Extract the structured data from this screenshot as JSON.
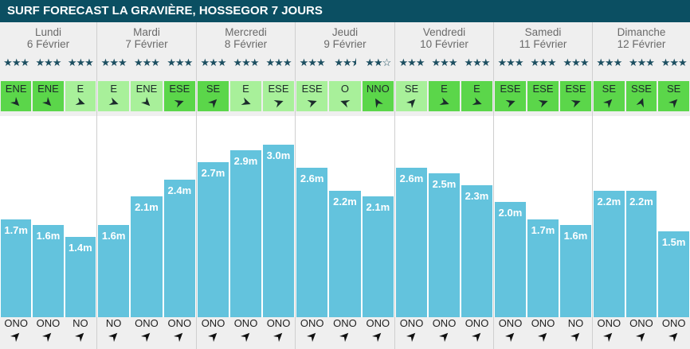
{
  "title": "SURF FORECAST LA GRAVIÈRE, HOSSEGOR 7 JOURS",
  "colors": {
    "header_bg": "#0b4f62",
    "wave_bar": "#63c3dd",
    "wind_light": "#a8f09a",
    "wind_strong": "#5bd64a",
    "star": "#1d4f61"
  },
  "chart_data": {
    "type": "bar",
    "title": "SURF FORECAST LA GRAVIÈRE, HOSSEGOR 7 JOURS",
    "ylabel": "",
    "unit": "m",
    "ylim": [
      0,
      3.5
    ],
    "days": [
      {
        "name": "Lundi",
        "date": "6 Février",
        "slots": [
          {
            "stars": 3,
            "wind": "ENE",
            "wind_strength": "strong",
            "wind_angle": 225,
            "wave": 1.7,
            "wave_label": "1.7m",
            "swell": "ONO",
            "swell_angle": 135
          },
          {
            "stars": 3,
            "wind": "ENE",
            "wind_strength": "strong",
            "wind_angle": 225,
            "wave": 1.6,
            "wave_label": "1.6m",
            "swell": "ONO",
            "swell_angle": 135
          },
          {
            "stars": 3,
            "wind": "E",
            "wind_strength": "light",
            "wind_angle": 200,
            "wave": 1.4,
            "wave_label": "1.4m",
            "swell": "NO",
            "swell_angle": 135
          }
        ]
      },
      {
        "name": "Mardi",
        "date": "7 Février",
        "slots": [
          {
            "stars": 3,
            "wind": "E",
            "wind_strength": "light",
            "wind_angle": 200,
            "wave": 1.6,
            "wave_label": "1.6m",
            "swell": "NO",
            "swell_angle": 135
          },
          {
            "stars": 3,
            "wind": "ENE",
            "wind_strength": "light",
            "wind_angle": 225,
            "wave": 2.1,
            "wave_label": "2.1m",
            "swell": "ONO",
            "swell_angle": 135
          },
          {
            "stars": 3,
            "wind": "ESE",
            "wind_strength": "strong",
            "wind_angle": 160,
            "wave": 2.4,
            "wave_label": "2.4m",
            "swell": "ONO",
            "swell_angle": 135
          }
        ]
      },
      {
        "name": "Mercredi",
        "date": "8 Février",
        "slots": [
          {
            "stars": 3,
            "wind": "SE",
            "wind_strength": "strong",
            "wind_angle": 135,
            "wave": 2.7,
            "wave_label": "2.7m",
            "swell": "ONO",
            "swell_angle": 135
          },
          {
            "stars": 3,
            "wind": "E",
            "wind_strength": "light",
            "wind_angle": 200,
            "wave": 2.9,
            "wave_label": "2.9m",
            "swell": "ONO",
            "swell_angle": 135
          },
          {
            "stars": 3,
            "wind": "ESE",
            "wind_strength": "light",
            "wind_angle": 160,
            "wave": 3.0,
            "wave_label": "3.0m",
            "swell": "ONO",
            "swell_angle": 135
          }
        ]
      },
      {
        "name": "Jeudi",
        "date": "9 Février",
        "slots": [
          {
            "stars": 3,
            "wind": "ESE",
            "wind_strength": "light",
            "wind_angle": 160,
            "wave": 2.6,
            "wave_label": "2.6m",
            "swell": "ONO",
            "swell_angle": 135
          },
          {
            "stars": 2.5,
            "wind": "O",
            "wind_strength": "light",
            "wind_angle": 20,
            "wave": 2.2,
            "wave_label": "2.2m",
            "swell": "ONO",
            "swell_angle": 135
          },
          {
            "stars": 2,
            "wind": "NNO",
            "wind_strength": "strong",
            "wind_angle": 60,
            "wave": 2.1,
            "wave_label": "2.1m",
            "swell": "ONO",
            "swell_angle": 135
          }
        ]
      },
      {
        "name": "Vendredi",
        "date": "10 Février",
        "slots": [
          {
            "stars": 3,
            "wind": "SE",
            "wind_strength": "light",
            "wind_angle": 135,
            "wave": 2.6,
            "wave_label": "2.6m",
            "swell": "ONO",
            "swell_angle": 135
          },
          {
            "stars": 3,
            "wind": "E",
            "wind_strength": "strong",
            "wind_angle": 200,
            "wave": 2.5,
            "wave_label": "2.5m",
            "swell": "ONO",
            "swell_angle": 135
          },
          {
            "stars": 3,
            "wind": "E",
            "wind_strength": "strong",
            "wind_angle": 200,
            "wave": 2.3,
            "wave_label": "2.3m",
            "swell": "ONO",
            "swell_angle": 135
          }
        ]
      },
      {
        "name": "Samedi",
        "date": "11 Février",
        "slots": [
          {
            "stars": 3,
            "wind": "ESE",
            "wind_strength": "strong",
            "wind_angle": 160,
            "wave": 2.0,
            "wave_label": "2.0m",
            "swell": "ONO",
            "swell_angle": 135
          },
          {
            "stars": 3,
            "wind": "ESE",
            "wind_strength": "strong",
            "wind_angle": 160,
            "wave": 1.7,
            "wave_label": "1.7m",
            "swell": "ONO",
            "swell_angle": 135
          },
          {
            "stars": 3,
            "wind": "ESE",
            "wind_strength": "strong",
            "wind_angle": 160,
            "wave": 1.6,
            "wave_label": "1.6m",
            "swell": "NO",
            "swell_angle": 135
          }
        ]
      },
      {
        "name": "Dimanche",
        "date": "12 Février",
        "slots": [
          {
            "stars": 3,
            "wind": "SE",
            "wind_strength": "strong",
            "wind_angle": 135,
            "wave": 2.2,
            "wave_label": "2.2m",
            "swell": "ONO",
            "swell_angle": 135
          },
          {
            "stars": 3,
            "wind": "SSE",
            "wind_strength": "strong",
            "wind_angle": 110,
            "wave": 2.2,
            "wave_label": "2.2m",
            "swell": "ONO",
            "swell_angle": 135
          },
          {
            "stars": 3,
            "wind": "SE",
            "wind_strength": "strong",
            "wind_angle": 135,
            "wave": 1.5,
            "wave_label": "1.5m",
            "swell": "ONO",
            "swell_angle": 135
          }
        ]
      }
    ]
  }
}
